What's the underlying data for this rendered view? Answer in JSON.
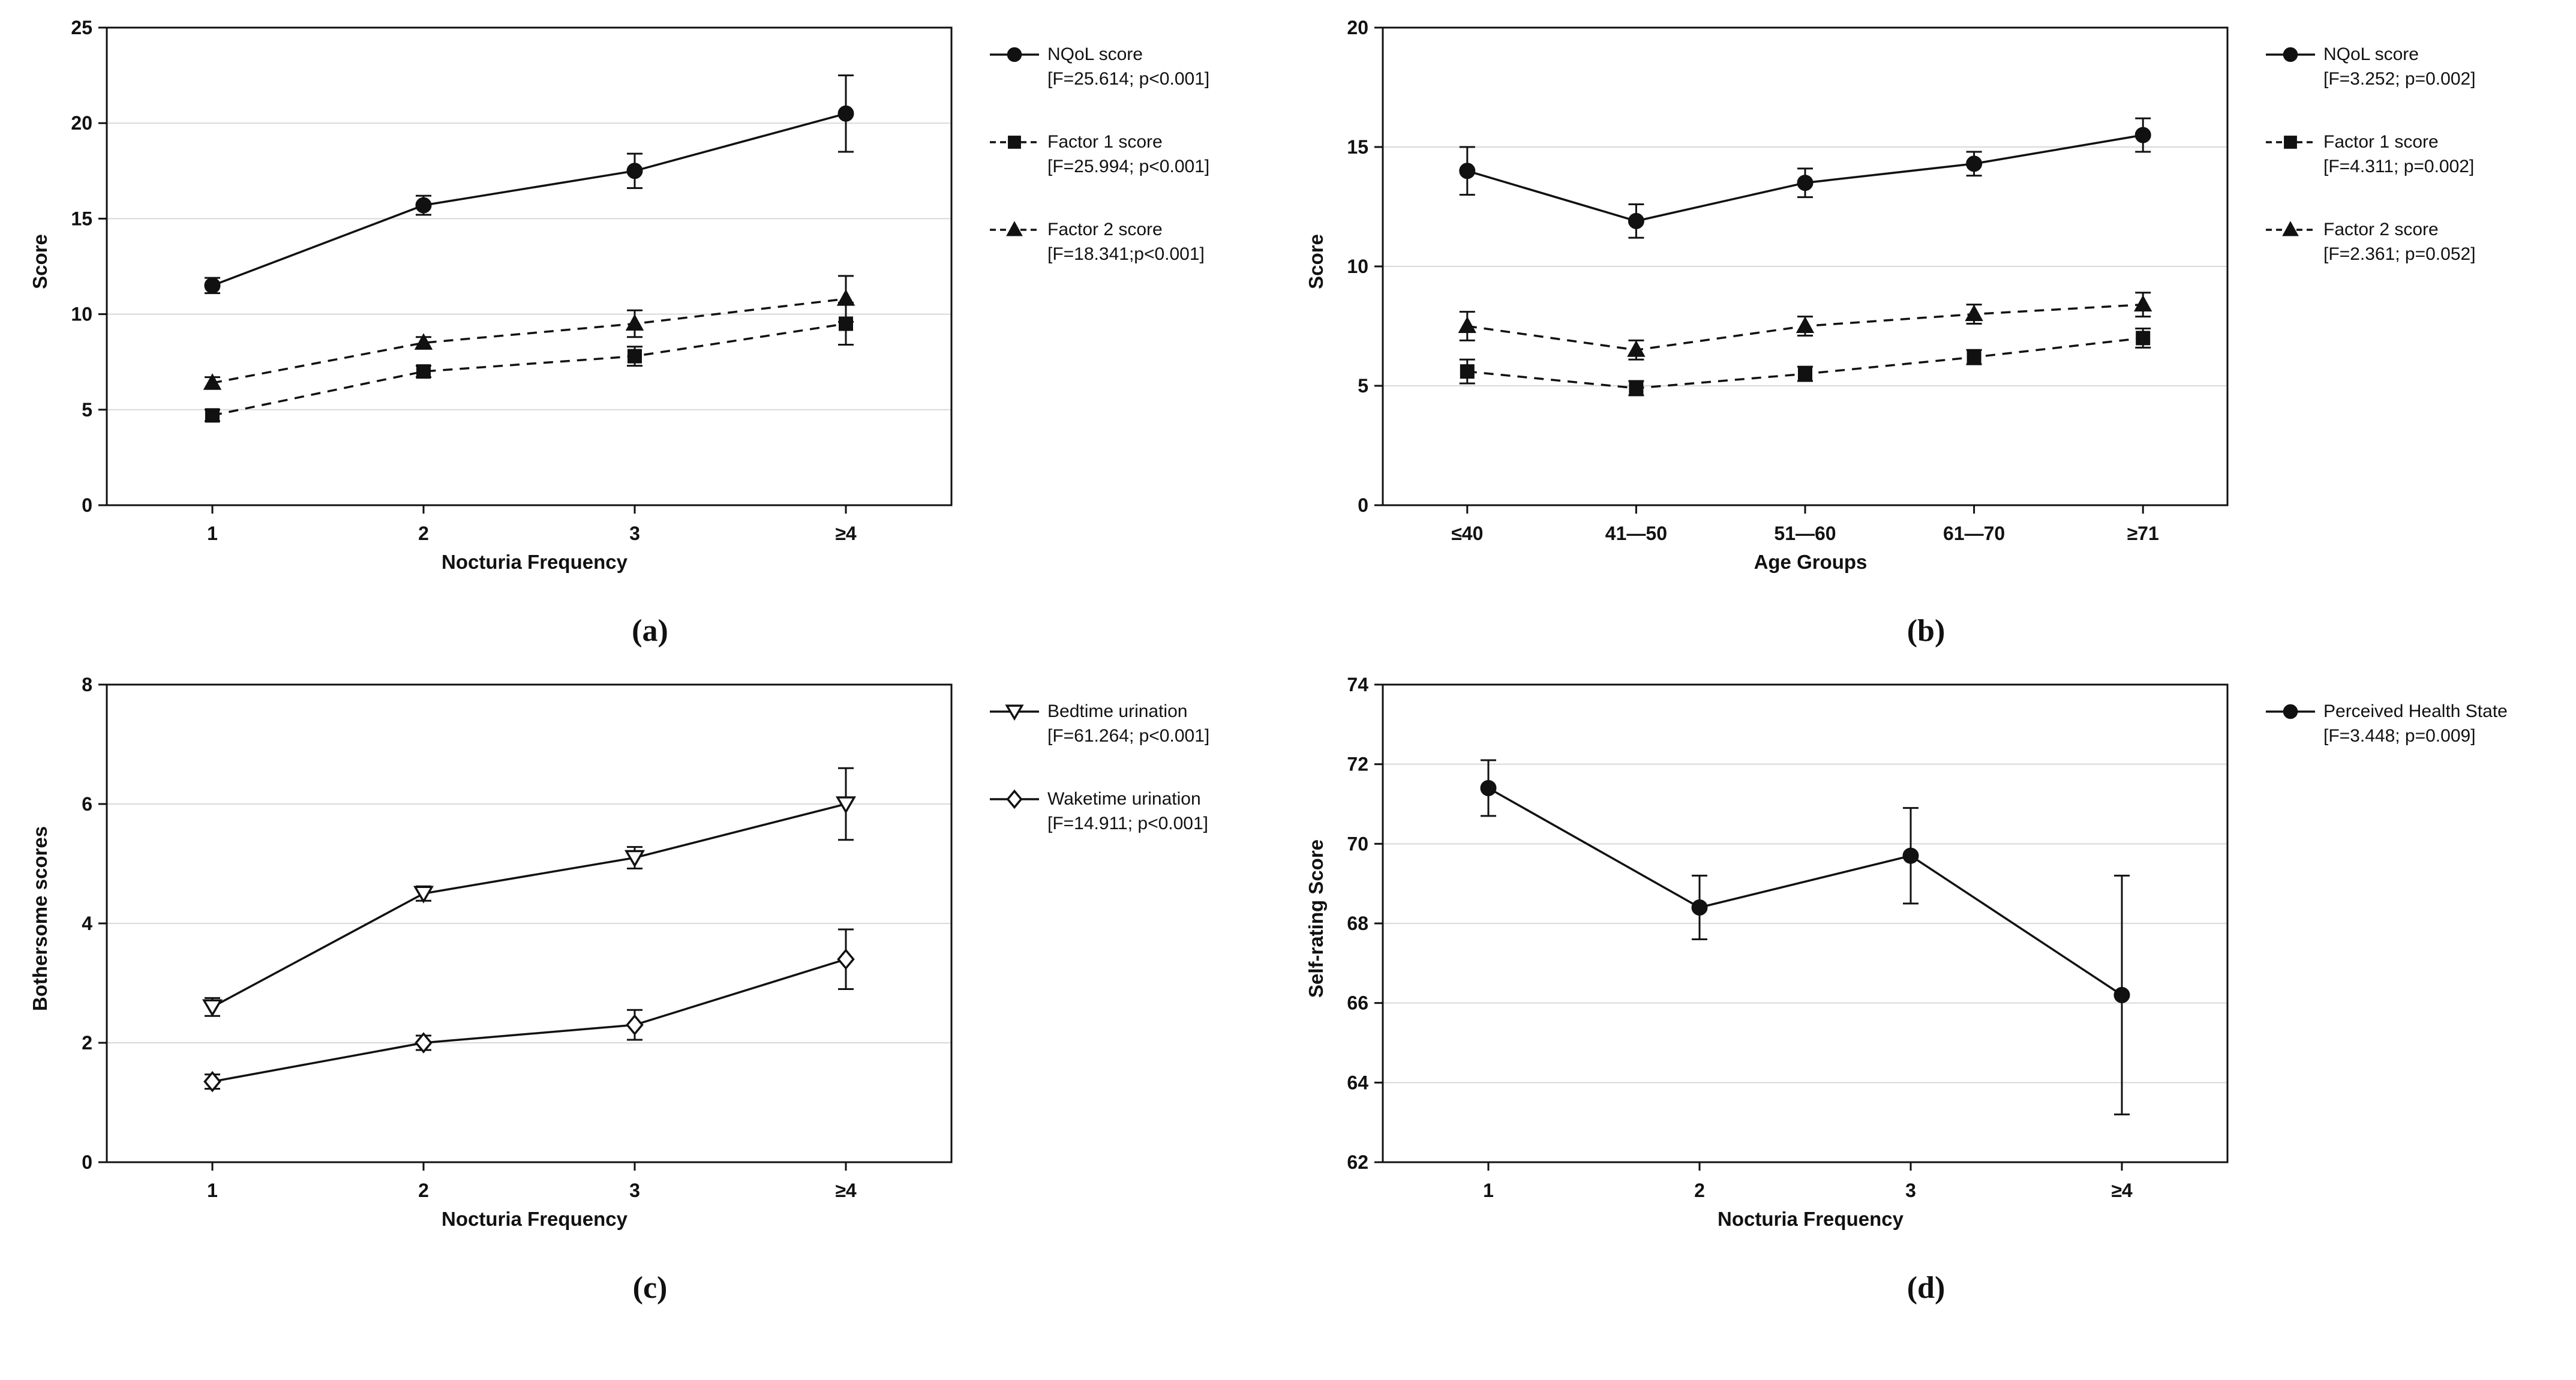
{
  "figure": {
    "background": "#ffffff",
    "line_color": "#111111",
    "grid_color": "#d9d9d9"
  },
  "chart_data": [
    {
      "type": "line",
      "panel_label": "(a)",
      "xlabel": "Nocturia Frequency",
      "ylabel": "Score",
      "categories": [
        "1",
        "2",
        "3",
        "≥4"
      ],
      "ylim": [
        0,
        25
      ],
      "yticks": [
        0,
        5,
        10,
        15,
        20,
        25
      ],
      "grid": true,
      "legend_position": "right",
      "series": [
        {
          "name": "NQoL score",
          "stats": "[F=25.614; p<0.001]",
          "marker": "circle",
          "fill": "solid",
          "line": "solid",
          "values": [
            11.5,
            15.7,
            17.5,
            20.5
          ],
          "errors": [
            0.4,
            0.5,
            0.9,
            2.0
          ]
        },
        {
          "name": "Factor 1 score",
          "stats": "[F=25.994; p<0.001]",
          "marker": "square",
          "fill": "solid",
          "line": "dashed",
          "values": [
            4.7,
            7.0,
            7.8,
            9.5
          ],
          "errors": [
            0.3,
            0.3,
            0.5,
            1.1
          ]
        },
        {
          "name": "Factor 2 score",
          "stats": "[F=18.341;p<0.001]",
          "marker": "triangle-up",
          "fill": "solid",
          "line": "dashed",
          "values": [
            6.4,
            8.5,
            9.5,
            10.8
          ],
          "errors": [
            0.3,
            0.3,
            0.7,
            1.2
          ]
        }
      ]
    },
    {
      "type": "line",
      "panel_label": "(b)",
      "xlabel": "Age Groups",
      "ylabel": "Score",
      "categories": [
        "≤40",
        "41—50",
        "51—60",
        "61—70",
        "≥71"
      ],
      "ylim": [
        0,
        20
      ],
      "yticks": [
        0,
        5,
        10,
        15,
        20
      ],
      "grid": true,
      "legend_position": "right",
      "series": [
        {
          "name": "NQoL score",
          "stats": "[F=3.252; p=0.002]",
          "marker": "circle",
          "fill": "solid",
          "line": "solid",
          "values": [
            14.0,
            11.9,
            13.5,
            14.3,
            15.5
          ],
          "errors": [
            1.0,
            0.7,
            0.6,
            0.5,
            0.7
          ]
        },
        {
          "name": "Factor 1 score",
          "stats": "[F=4.311; p=0.002]",
          "marker": "square",
          "fill": "solid",
          "line": "dashed",
          "values": [
            5.6,
            4.9,
            5.5,
            6.2,
            7.0
          ],
          "errors": [
            0.5,
            0.3,
            0.3,
            0.3,
            0.4
          ]
        },
        {
          "name": "Factor 2 score",
          "stats": "[F=2.361; p=0.052]",
          "marker": "triangle-up",
          "fill": "solid",
          "line": "dashed",
          "values": [
            7.5,
            6.5,
            7.5,
            8.0,
            8.4
          ],
          "errors": [
            0.6,
            0.4,
            0.4,
            0.4,
            0.5
          ]
        }
      ]
    },
    {
      "type": "line",
      "panel_label": "(c)",
      "xlabel": "Nocturia Frequency",
      "ylabel": "Bothersome scores",
      "categories": [
        "1",
        "2",
        "3",
        "≥4"
      ],
      "ylim": [
        0,
        8
      ],
      "yticks": [
        0,
        2,
        4,
        6,
        8
      ],
      "grid": true,
      "legend_position": "right",
      "series": [
        {
          "name": "Bedtime urination",
          "stats": "[F=61.264; p<0.001]",
          "marker": "triangle-down",
          "fill": "open",
          "line": "solid",
          "values": [
            2.6,
            4.5,
            5.1,
            6.0
          ],
          "errors": [
            0.15,
            0.12,
            0.18,
            0.6
          ]
        },
        {
          "name": "Waketime urination",
          "stats": "[F=14.911; p<0.001]",
          "marker": "diamond",
          "fill": "open",
          "line": "solid",
          "values": [
            1.35,
            2.0,
            2.3,
            3.4
          ],
          "errors": [
            0.12,
            0.12,
            0.25,
            0.5
          ]
        }
      ]
    },
    {
      "type": "line",
      "panel_label": "(d)",
      "xlabel": "Nocturia Frequency",
      "ylabel": "Self-rating Score",
      "categories": [
        "1",
        "2",
        "3",
        "≥4"
      ],
      "ylim": [
        62,
        74
      ],
      "yticks": [
        62,
        64,
        66,
        68,
        70,
        72,
        74
      ],
      "grid": true,
      "legend_position": "right",
      "series": [
        {
          "name": "Perceived Health State",
          "stats": "[F=3.448; p=0.009]",
          "marker": "circle",
          "fill": "solid",
          "line": "solid",
          "values": [
            71.4,
            68.4,
            69.7,
            66.2
          ],
          "errors": [
            0.7,
            0.8,
            1.2,
            3.0
          ]
        }
      ]
    }
  ]
}
